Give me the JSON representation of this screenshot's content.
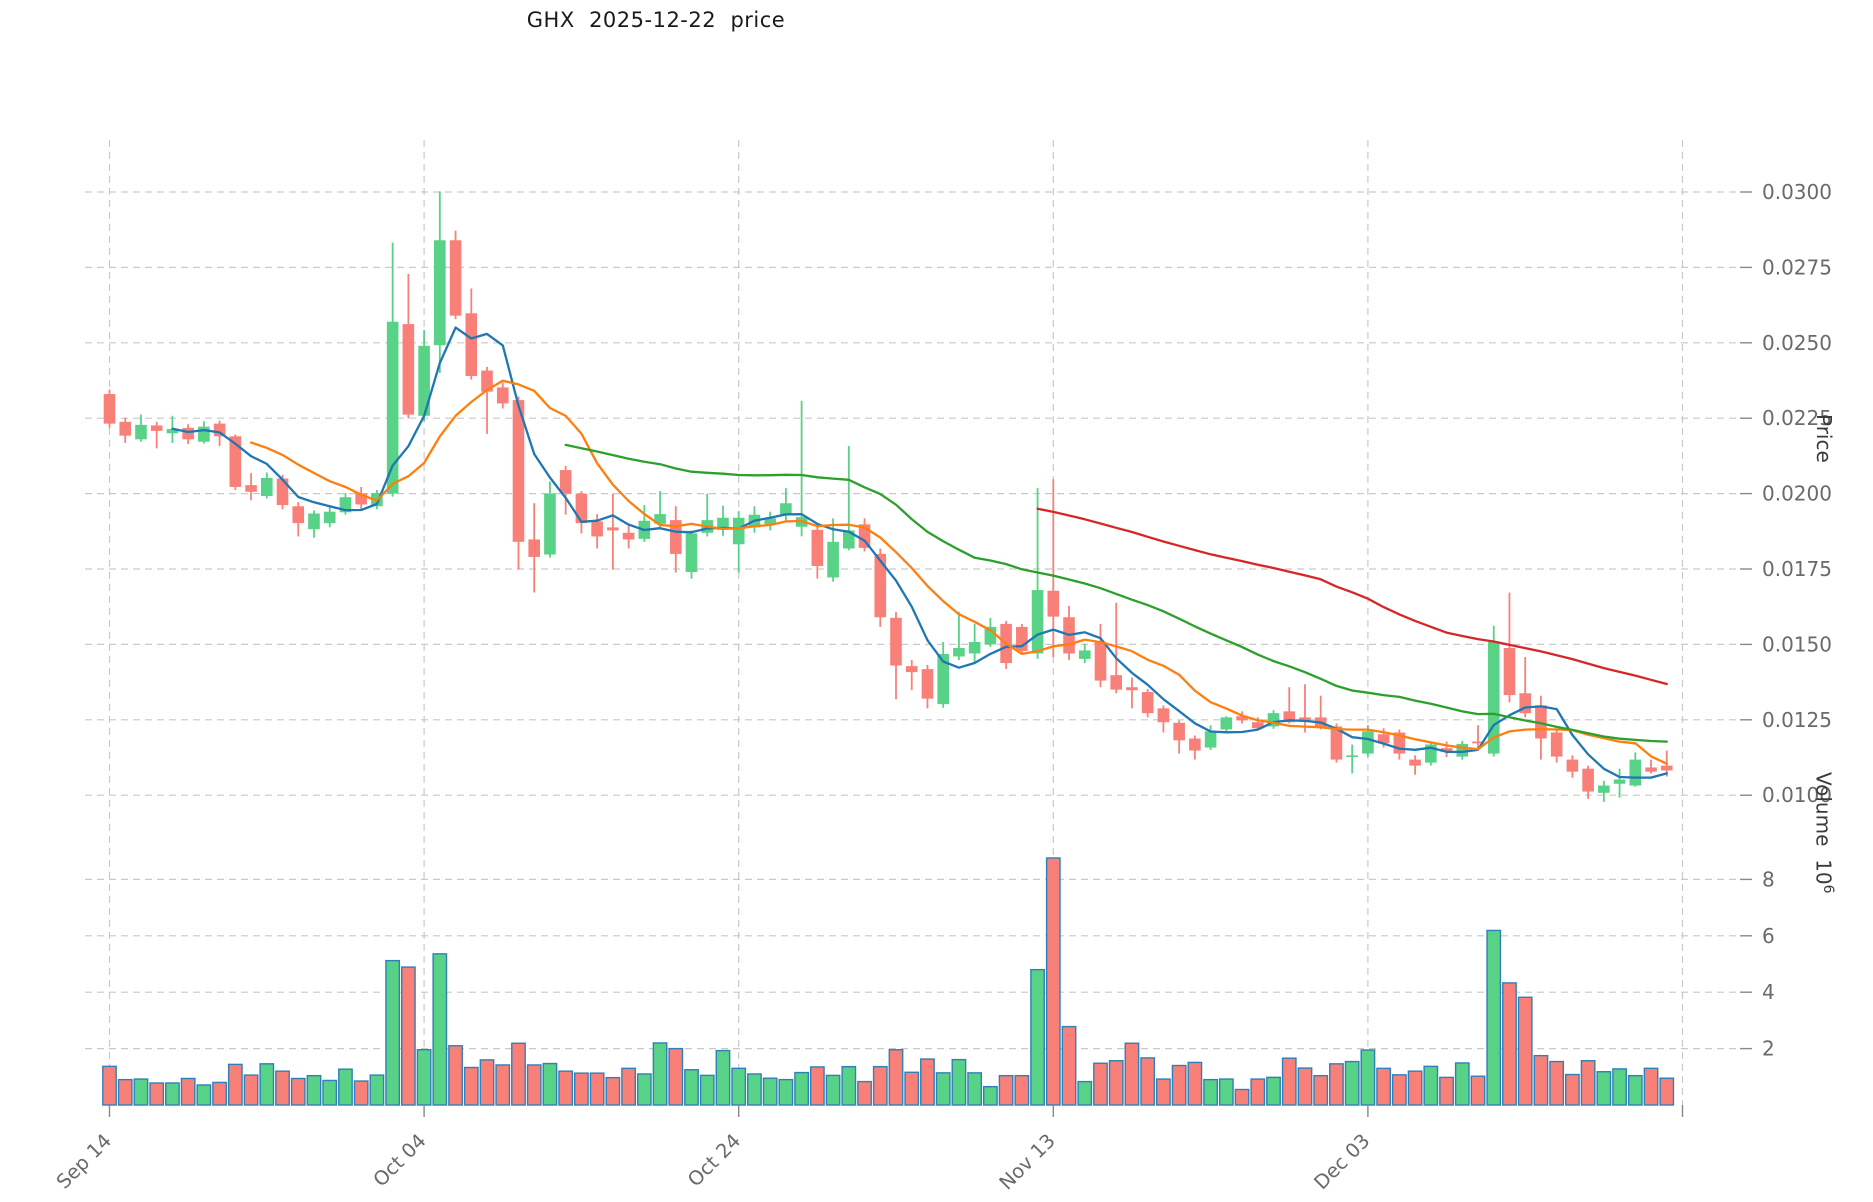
{
  "title": "GHX  2025-12-22  price",
  "axes": {
    "price_axis_label": "Price",
    "volume_axis_label_base": "Volume  10",
    "volume_axis_label_exp": "6",
    "price_ticks": [
      {
        "label": "0.0300",
        "value": 0.03
      },
      {
        "label": "0.0275",
        "value": 0.0275
      },
      {
        "label": "0.0250",
        "value": 0.025
      },
      {
        "label": "0.0225",
        "value": 0.0225
      },
      {
        "label": "0.0200",
        "value": 0.02
      },
      {
        "label": "0.0175",
        "value": 0.0175
      },
      {
        "label": "0.0150",
        "value": 0.015
      },
      {
        "label": "0.0125",
        "value": 0.0125
      },
      {
        "label": "0.0100",
        "value": 0.01
      }
    ],
    "volume_ticks": [
      {
        "label": "2",
        "value": 2
      },
      {
        "label": "4",
        "value": 4
      },
      {
        "label": "6",
        "value": 6
      },
      {
        "label": "8",
        "value": 8
      }
    ],
    "x_ticks": [
      {
        "label": "Sep 14",
        "bar": 0
      },
      {
        "label": "Oct 04",
        "bar": 20
      },
      {
        "label": "Oct 24",
        "bar": 40
      },
      {
        "label": "Nov 13",
        "bar": 60
      },
      {
        "label": "Dec 03",
        "bar": 80
      },
      {
        "label": "",
        "bar": 100
      }
    ]
  },
  "chart_data": {
    "type": "candlestick",
    "symbol": "GHX",
    "title_date": "2025-12-22",
    "panels": [
      "price",
      "volume"
    ],
    "grid": true,
    "ylim_price": [
      0.00945,
      0.0317
    ],
    "ylim_volume_millions": [
      0,
      9.3
    ],
    "colors": {
      "up": "#57d286",
      "down": "#f88079",
      "volume_edge": "#2f7fb8",
      "grid": "#c9c9c9",
      "tick_text": "#6a6a6a",
      "mav": [
        "#1f77b4",
        "#ff7f0e",
        "#2ca02c",
        "#d62728"
      ]
    },
    "moving_average_windows": [
      5,
      10,
      30,
      60
    ],
    "ohlc": [
      [
        0.0233,
        0.02345,
        0.02218,
        0.02232
      ],
      [
        0.02238,
        0.02252,
        0.02168,
        0.02192
      ],
      [
        0.0218,
        0.02262,
        0.02172,
        0.02228
      ],
      [
        0.02226,
        0.02238,
        0.0215,
        0.02208
      ],
      [
        0.022,
        0.02258,
        0.02168,
        0.02214
      ],
      [
        0.02218,
        0.0223,
        0.02164,
        0.0218
      ],
      [
        0.02172,
        0.0224,
        0.02166,
        0.02222
      ],
      [
        0.02232,
        0.02242,
        0.02158,
        0.0219
      ],
      [
        0.0219,
        0.02196,
        0.02012,
        0.02022
      ],
      [
        0.02028,
        0.02068,
        0.01978,
        0.02006
      ],
      [
        0.01992,
        0.0207,
        0.01984,
        0.02052
      ],
      [
        0.0205,
        0.02062,
        0.01948,
        0.01962
      ],
      [
        0.01958,
        0.01972,
        0.01858,
        0.01902
      ],
      [
        0.01882,
        0.01944,
        0.01854,
        0.01934
      ],
      [
        0.01902,
        0.01962,
        0.01888,
        0.0194
      ],
      [
        0.01938,
        0.02002,
        0.0193,
        0.01988
      ],
      [
        0.02,
        0.02022,
        0.01948,
        0.01964
      ],
      [
        0.01958,
        0.02012,
        0.01948,
        0.02002
      ],
      [
        0.02,
        0.02832,
        0.0199,
        0.0257
      ],
      [
        0.02562,
        0.02728,
        0.0225,
        0.02262
      ],
      [
        0.02258,
        0.02542,
        0.0224,
        0.0249
      ],
      [
        0.02492,
        0.03002,
        0.024,
        0.0284
      ],
      [
        0.0284,
        0.02872,
        0.02578,
        0.0259
      ],
      [
        0.02598,
        0.0268,
        0.02378,
        0.0239
      ],
      [
        0.02408,
        0.0242,
        0.02198,
        0.02338
      ],
      [
        0.02352,
        0.02368,
        0.02282,
        0.02299
      ],
      [
        0.0231,
        0.02322,
        0.01748,
        0.0184
      ],
      [
        0.01848,
        0.01968,
        0.01672,
        0.0179
      ],
      [
        0.01798,
        0.0204,
        0.01788,
        0.02
      ],
      [
        0.02078,
        0.02092,
        0.0193,
        0.02
      ],
      [
        0.02,
        0.02008,
        0.01868,
        0.01902
      ],
      [
        0.01908,
        0.01932,
        0.01818,
        0.01858
      ],
      [
        0.01888,
        0.02,
        0.01748,
        0.01878
      ],
      [
        0.0187,
        0.019,
        0.01818,
        0.01848
      ],
      [
        0.0185,
        0.01962,
        0.0184,
        0.0191
      ],
      [
        0.019,
        0.02008,
        0.01888,
        0.01932
      ],
      [
        0.01912,
        0.01958,
        0.01738,
        0.018
      ],
      [
        0.0174,
        0.01878,
        0.01718,
        0.01868
      ],
      [
        0.0187,
        0.02,
        0.01858,
        0.01912
      ],
      [
        0.0188,
        0.0196,
        0.0186,
        0.0192
      ],
      [
        0.01832,
        0.01942,
        0.01738,
        0.0192
      ],
      [
        0.01888,
        0.01958,
        0.0187,
        0.0193
      ],
      [
        0.01898,
        0.0194,
        0.01878,
        0.01918
      ],
      [
        0.01928,
        0.02018,
        0.0191,
        0.01968
      ],
      [
        0.0189,
        0.02308,
        0.01858,
        0.01922
      ],
      [
        0.0188,
        0.019,
        0.01718,
        0.0176
      ],
      [
        0.01722,
        0.01918,
        0.01708,
        0.0184
      ],
      [
        0.01818,
        0.02158,
        0.01812,
        0.01878
      ],
      [
        0.01898,
        0.01918,
        0.01808,
        0.0182
      ],
      [
        0.018,
        0.01818,
        0.01558,
        0.0159
      ],
      [
        0.01588,
        0.01608,
        0.01318,
        0.0143
      ],
      [
        0.01428,
        0.01448,
        0.01348,
        0.01408
      ],
      [
        0.01418,
        0.01432,
        0.01288,
        0.0132
      ],
      [
        0.01302,
        0.01508,
        0.0129,
        0.01468
      ],
      [
        0.0146,
        0.01608,
        0.01448,
        0.01488
      ],
      [
        0.0147,
        0.01568,
        0.0144,
        0.01508
      ],
      [
        0.015,
        0.01588,
        0.01492,
        0.01558
      ],
      [
        0.01568,
        0.01578,
        0.01418,
        0.01438
      ],
      [
        0.01558,
        0.01568,
        0.01468,
        0.01478
      ],
      [
        0.0147,
        0.02018,
        0.01452,
        0.0168
      ],
      [
        0.01678,
        0.02048,
        0.01458,
        0.01592
      ],
      [
        0.0159,
        0.01628,
        0.01448,
        0.0147
      ],
      [
        0.01452,
        0.01502,
        0.01438,
        0.0148
      ],
      [
        0.01508,
        0.01568,
        0.01358,
        0.0138
      ],
      [
        0.01398,
        0.01638,
        0.01338,
        0.0135
      ],
      [
        0.01358,
        0.0139,
        0.01288,
        0.01348
      ],
      [
        0.01342,
        0.01352,
        0.01258,
        0.01272
      ],
      [
        0.01288,
        0.01298,
        0.01208,
        0.01242
      ],
      [
        0.0124,
        0.01248,
        0.01138,
        0.01182
      ],
      [
        0.01188,
        0.01198,
        0.01118,
        0.01148
      ],
      [
        0.01158,
        0.01232,
        0.0115,
        0.01212
      ],
      [
        0.01218,
        0.01262,
        0.01208,
        0.01258
      ],
      [
        0.01262,
        0.01278,
        0.01238,
        0.01248
      ],
      [
        0.01242,
        0.01258,
        0.01216,
        0.01222
      ],
      [
        0.01228,
        0.01282,
        0.0122,
        0.01272
      ],
      [
        0.01278,
        0.01358,
        0.01238,
        0.01242
      ],
      [
        0.01258,
        0.01368,
        0.01208,
        0.01248
      ],
      [
        0.01258,
        0.0133,
        0.01218,
        0.01222
      ],
      [
        0.01228,
        0.01238,
        0.01108,
        0.01118
      ],
      [
        0.01128,
        0.01168,
        0.01072,
        0.01132
      ],
      [
        0.01138,
        0.01232,
        0.01128,
        0.01212
      ],
      [
        0.01202,
        0.01222,
        0.01158,
        0.01172
      ],
      [
        0.01208,
        0.01218,
        0.01118,
        0.01138
      ],
      [
        0.01118,
        0.01132,
        0.01068,
        0.01098
      ],
      [
        0.01108,
        0.01178,
        0.01098,
        0.01168
      ],
      [
        0.01156,
        0.01178,
        0.01126,
        0.01144
      ],
      [
        0.01128,
        0.0118,
        0.01118,
        0.0117
      ],
      [
        0.01178,
        0.01232,
        0.0115,
        0.01172
      ],
      [
        0.01138,
        0.01562,
        0.01128,
        0.01508
      ],
      [
        0.01488,
        0.01672,
        0.01308,
        0.01332
      ],
      [
        0.01338,
        0.01458,
        0.01258,
        0.01272
      ],
      [
        0.01298,
        0.0133,
        0.01118,
        0.01188
      ],
      [
        0.01208,
        0.01222,
        0.01108,
        0.01128
      ],
      [
        0.01118,
        0.01132,
        0.01058,
        0.01078
      ],
      [
        0.01088,
        0.01098,
        0.00988,
        0.01012
      ],
      [
        0.01008,
        0.01048,
        0.00978,
        0.01032
      ],
      [
        0.01038,
        0.01088,
        0.00992,
        0.01052
      ],
      [
        0.01032,
        0.01142,
        0.01028,
        0.01118
      ],
      [
        0.01092,
        0.01118,
        0.01072,
        0.01078
      ],
      [
        0.01098,
        0.01148,
        0.01062,
        0.01082
      ]
    ],
    "volume_millions": [
      1.37,
      0.9,
      0.92,
      0.78,
      0.78,
      0.94,
      0.71,
      0.8,
      1.44,
      1.06,
      1.46,
      1.2,
      0.94,
      1.04,
      0.87,
      1.27,
      0.85,
      1.06,
      5.12,
      4.89,
      1.96,
      5.36,
      2.1,
      1.33,
      1.6,
      1.42,
      2.19,
      1.42,
      1.47,
      1.2,
      1.13,
      1.13,
      0.97,
      1.3,
      1.1,
      2.2,
      2.0,
      1.25,
      1.05,
      1.93,
      1.3,
      1.1,
      0.95,
      0.9,
      1.15,
      1.35,
      1.05,
      1.36,
      0.83,
      1.36,
      1.96,
      1.16,
      1.63,
      1.14,
      1.61,
      1.14,
      0.65,
      1.04,
      1.04,
      4.8,
      8.76,
      2.78,
      0.83,
      1.48,
      1.57,
      2.19,
      1.67,
      0.92,
      1.4,
      1.51,
      0.9,
      0.92,
      0.55,
      0.92,
      0.98,
      1.66,
      1.31,
      1.04,
      1.46,
      1.54,
      1.95,
      1.3,
      1.07,
      1.2,
      1.37,
      0.98,
      1.49,
      1.02,
      6.19,
      4.33,
      3.82,
      1.75,
      1.54,
      1.08,
      1.57,
      1.18,
      1.28,
      1.04,
      1.3,
      0.95
    ]
  }
}
